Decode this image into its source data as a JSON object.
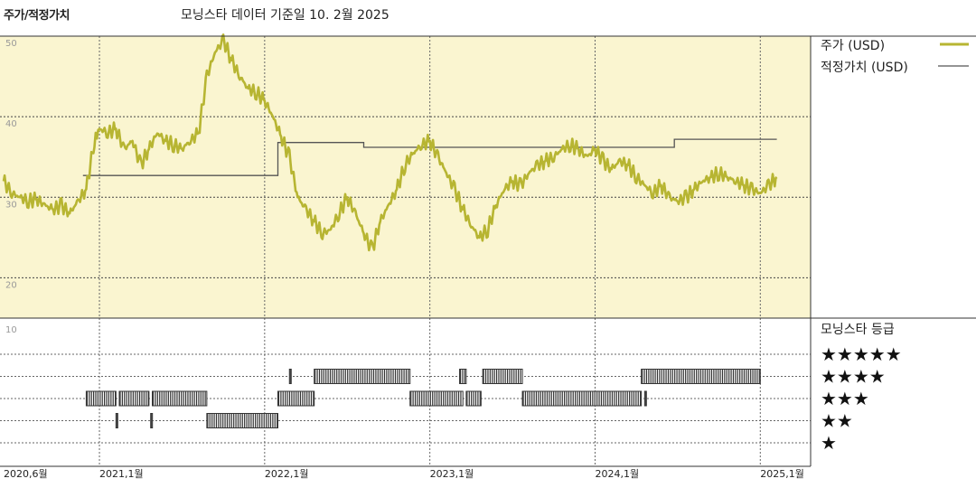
{
  "header": {
    "title": "주가/적정가치",
    "subtitle": "모닝스타 데이터 기준일 10. 2월 2025"
  },
  "colors": {
    "price_line": "#b7b532",
    "fair_value_line": "#555555",
    "plot_background": "#faf5d0",
    "rating_bar": "#333333"
  },
  "chart_data": [
    {
      "type": "line",
      "title": "주가/적정가치",
      "x_unit": "year",
      "xlim": [
        2020.42,
        2025.25
      ],
      "ylim": [
        15,
        50
      ],
      "yticks": [
        "50",
        "40",
        "30",
        "20"
      ],
      "ytick_values": [
        50,
        40,
        30,
        20
      ],
      "xticks": [
        "2020,6월",
        "2021,1월",
        "2022,1월",
        "2023,1월",
        "2024,1월",
        "2025,1월"
      ],
      "xtick_values": [
        2020.42,
        2021.0,
        2022.0,
        2023.0,
        2024.0,
        2025.0
      ],
      "legend_placement": "right",
      "grid": true,
      "series": [
        {
          "name": "주가 (USD)",
          "x": [
            2020.42,
            2020.47,
            2020.52,
            2020.57,
            2020.62,
            2020.67,
            2020.72,
            2020.77,
            2020.82,
            2020.87,
            2020.92,
            2020.97,
            2021.0,
            2021.05,
            2021.1,
            2021.15,
            2021.2,
            2021.25,
            2021.3,
            2021.35,
            2021.4,
            2021.45,
            2021.5,
            2021.55,
            2021.6,
            2021.65,
            2021.7,
            2021.75,
            2021.8,
            2021.85,
            2021.9,
            2021.95,
            2022.0,
            2022.05,
            2022.1,
            2022.15,
            2022.2,
            2022.25,
            2022.3,
            2022.35,
            2022.4,
            2022.45,
            2022.5,
            2022.55,
            2022.6,
            2022.65,
            2022.7,
            2022.75,
            2022.8,
            2022.85,
            2022.9,
            2022.95,
            2023.0,
            2023.05,
            2023.1,
            2023.15,
            2023.2,
            2023.25,
            2023.3,
            2023.35,
            2023.4,
            2023.45,
            2023.5,
            2023.55,
            2023.6,
            2023.65,
            2023.7,
            2023.75,
            2023.8,
            2023.85,
            2023.9,
            2023.95,
            2024.0,
            2024.05,
            2024.1,
            2024.15,
            2024.2,
            2024.25,
            2024.3,
            2024.35,
            2024.4,
            2024.45,
            2024.5,
            2024.55,
            2024.6,
            2024.65,
            2024.7,
            2024.75,
            2024.8,
            2024.85,
            2024.9,
            2024.95,
            2025.0,
            2025.05,
            2025.1
          ],
          "y": [
            32.0,
            30.5,
            30.0,
            29.5,
            29.8,
            29.0,
            28.5,
            29.0,
            28.0,
            29.5,
            31.0,
            37.0,
            38.5,
            38.0,
            38.5,
            36.0,
            37.0,
            34.0,
            36.0,
            38.0,
            37.0,
            36.5,
            36.0,
            37.0,
            38.0,
            45.0,
            48.0,
            49.5,
            47.0,
            45.0,
            43.5,
            43.0,
            42.0,
            40.0,
            37.5,
            35.0,
            30.0,
            28.5,
            27.0,
            25.5,
            26.0,
            28.0,
            30.0,
            28.0,
            25.5,
            23.5,
            27.0,
            29.0,
            31.0,
            34.0,
            35.5,
            36.5,
            37.0,
            35.0,
            33.0,
            31.0,
            28.5,
            26.5,
            25.0,
            26.0,
            29.0,
            31.0,
            32.0,
            31.5,
            33.0,
            34.0,
            34.5,
            35.0,
            36.0,
            36.5,
            36.0,
            35.0,
            36.0,
            34.5,
            33.5,
            34.5,
            34.0,
            32.5,
            31.5,
            30.5,
            31.5,
            30.0,
            29.5,
            30.0,
            31.0,
            32.0,
            32.5,
            33.0,
            32.5,
            32.0,
            31.5,
            31.0,
            30.5,
            31.5,
            32.5
          ]
        },
        {
          "name": "적정가치 (USD)",
          "x": [
            2020.9,
            2021.0,
            2021.5,
            2022.08,
            2022.08,
            2022.6,
            2022.6,
            2023.5,
            2024.0,
            2024.48,
            2024.48,
            2025.1
          ],
          "y": [
            32.7,
            32.7,
            32.7,
            32.7,
            36.8,
            36.8,
            36.2,
            36.2,
            36.2,
            36.2,
            37.2,
            37.2
          ]
        }
      ]
    },
    {
      "type": "bar",
      "title": "모닝스타 등급",
      "subtitle": "",
      "ylabel_top": "10",
      "categories": [
        "★★★★★",
        "★★★★",
        "★★★",
        "★★",
        "★"
      ],
      "rating_values": [
        5,
        4,
        3,
        2,
        1
      ],
      "segments": [
        {
          "rating": 3,
          "start": 2020.92,
          "end": 2021.1
        },
        {
          "rating": 3,
          "start": 2021.12,
          "end": 2021.3
        },
        {
          "rating": 3,
          "start": 2021.32,
          "end": 2021.65
        },
        {
          "rating": 2,
          "start": 2021.1,
          "end": 2021.11
        },
        {
          "rating": 2,
          "start": 2021.31,
          "end": 2021.32
        },
        {
          "rating": 2,
          "start": 2021.65,
          "end": 2022.08
        },
        {
          "rating": 3,
          "start": 2022.08,
          "end": 2022.3
        },
        {
          "rating": 4,
          "start": 2022.15,
          "end": 2022.16
        },
        {
          "rating": 4,
          "start": 2022.3,
          "end": 2022.88
        },
        {
          "rating": 3,
          "start": 2022.88,
          "end": 2023.2
        },
        {
          "rating": 4,
          "start": 2023.18,
          "end": 2023.22
        },
        {
          "rating": 3,
          "start": 2023.22,
          "end": 2023.31
        },
        {
          "rating": 4,
          "start": 2023.32,
          "end": 2023.56
        },
        {
          "rating": 3,
          "start": 2023.56,
          "end": 2024.28
        },
        {
          "rating": 3,
          "start": 2024.3,
          "end": 2024.31
        },
        {
          "rating": 4,
          "start": 2024.28,
          "end": 2025.0
        }
      ]
    }
  ]
}
